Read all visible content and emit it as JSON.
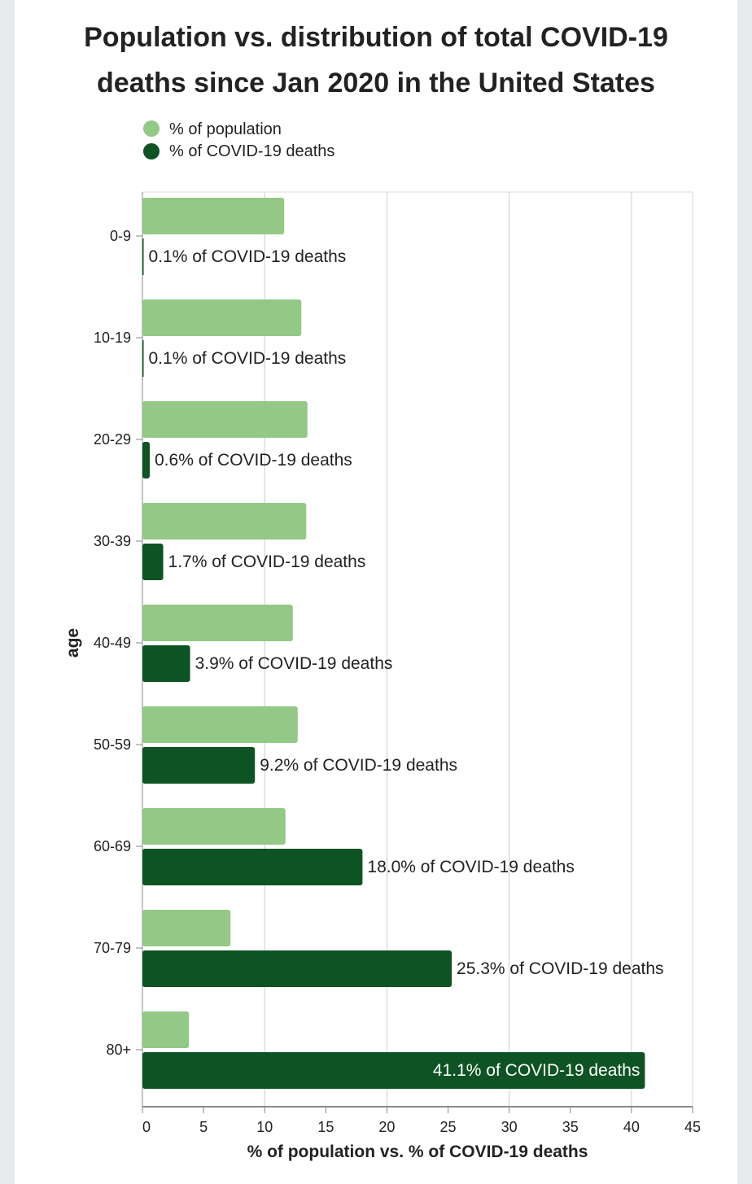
{
  "chart_data": {
    "type": "bar",
    "orientation": "horizontal",
    "title": [
      "Population vs. distribution of total COVID-19",
      "deaths since Jan 2020 in the United States"
    ],
    "xlabel": "% of population vs. % of COVID-19 deaths",
    "ylabel": "age",
    "xlim": [
      0,
      45
    ],
    "xticks": [
      "0",
      "5",
      "10",
      "15",
      "20",
      "25",
      "30",
      "35",
      "40",
      "45"
    ],
    "grid": true,
    "legend_position": "top-left",
    "categories": [
      "0-9",
      "10-19",
      "20-29",
      "30-39",
      "40-49",
      "50-59",
      "60-69",
      "70-79",
      "80+"
    ],
    "series": [
      {
        "name": "% of population",
        "color": "#93c886",
        "values": [
          11.6,
          13.0,
          13.5,
          13.4,
          12.3,
          12.7,
          11.7,
          7.2,
          3.8
        ]
      },
      {
        "name": "% of COVID-19 deaths",
        "color": "#0e5323",
        "values": [
          0.1,
          0.1,
          0.6,
          1.7,
          3.9,
          9.2,
          18.0,
          25.3,
          41.1
        ]
      }
    ],
    "data_labels": [
      "0.1% of COVID-19 deaths",
      "0.1% of COVID-19 deaths",
      "0.6% of COVID-19 deaths",
      "1.7% of COVID-19 deaths",
      "3.9% of COVID-19 deaths",
      "9.2% of COVID-19 deaths",
      "18.0% of COVID-19 deaths",
      "25.3% of COVID-19 deaths",
      "41.1% of COVID-19 deaths"
    ]
  }
}
